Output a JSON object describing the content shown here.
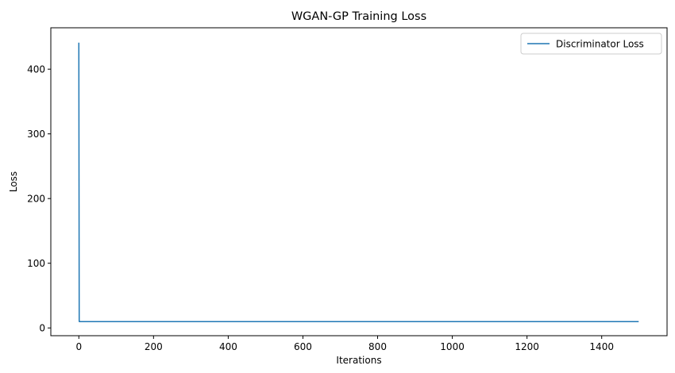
{
  "chart_data": {
    "type": "line",
    "title": "WGAN-GP Training Loss",
    "xlabel": "Iterations",
    "ylabel": "Loss",
    "xlim": [
      -75,
      1575
    ],
    "ylim": [
      -12,
      464
    ],
    "xticks": [
      0,
      200,
      400,
      600,
      800,
      1000,
      1200,
      1400
    ],
    "yticks": [
      0,
      100,
      200,
      300,
      400
    ],
    "legend": "top-right",
    "series": [
      {
        "name": "Discriminator Loss",
        "color": "#1f77b4",
        "x": [
          0,
          1,
          2,
          5,
          20,
          100,
          300,
          600,
          900,
          1200,
          1499
        ],
        "y": [
          441,
          10,
          9.8,
          9.7,
          9.7,
          9.7,
          9.7,
          9.7,
          9.7,
          9.7,
          9.7
        ]
      }
    ]
  }
}
